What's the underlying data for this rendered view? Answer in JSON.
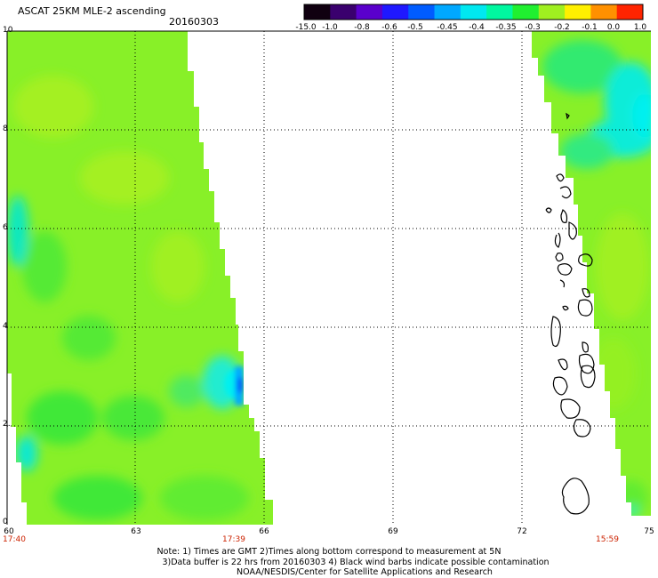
{
  "header": {
    "title": "ASCAT 25KM MLE-2 ascending",
    "date": "20160303"
  },
  "colorbar": {
    "labels": [
      "-15.0",
      "-1.0",
      "-0.8",
      "-0.6",
      "-0.5",
      "-0.45",
      "-0.4",
      "-0.35",
      "-0.3",
      "-0.2",
      "-0.1",
      "0.0",
      "1.0"
    ],
    "colors": [
      "#100010",
      "#3a006e",
      "#5a00cc",
      "#1f18ff",
      "#005cff",
      "#00a8ff",
      "#00e8f0",
      "#00f8a0",
      "#20f030",
      "#a0f020",
      "#fff000",
      "#ff9000",
      "#ff2400"
    ]
  },
  "axes": {
    "y_ticks": [
      "0",
      "2.",
      "4",
      "6",
      "8",
      "10"
    ],
    "x_ticks": [
      "60",
      "63",
      "66",
      "69",
      "72",
      "75"
    ],
    "times": [
      "17:40",
      "17:39",
      "15:59"
    ]
  },
  "colors": {
    "swath_base": "#88f028",
    "swath_light": "#a4f020",
    "swath_dark": "#40e838",
    "cyan_patch": "#00f0f0",
    "blue_patch": "#0070ff",
    "time_text": "#cc2200"
  },
  "footer": {
    "note_line1": "Note: 1) Times are GMT 2)Times along bottom correspond to measurement at 5N",
    "note_line2": "3)Data buffer is 22 hrs from 20160303 4) Black wind barbs indicate possible contamination",
    "note_line3": "NOAA/NESDIS/Center for Satellite Applications and Research"
  }
}
